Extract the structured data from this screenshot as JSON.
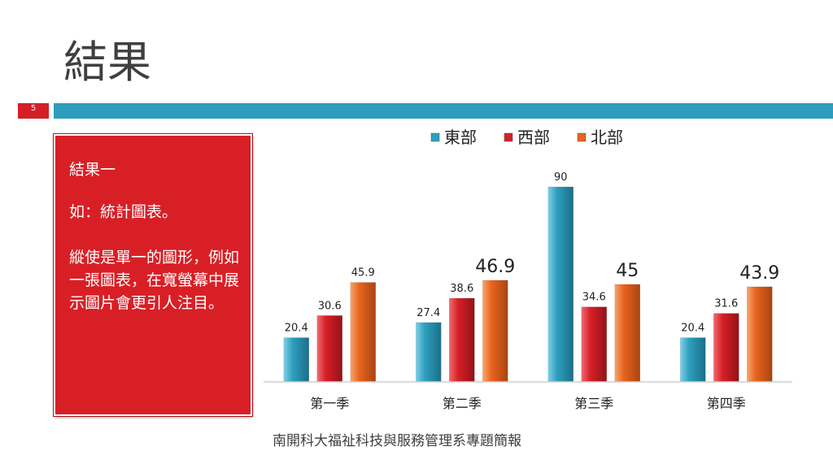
{
  "slide": {
    "title": "結果",
    "page_number": "5",
    "footer": "南開科大福祉科技與服務管理系專題簡報"
  },
  "textbox": {
    "line1": "結果一",
    "line2": "如：統計圖表。",
    "line3": "縱使是單一的圖形，例如一張圖表，在寬螢幕中展示圖片會更引人注目。"
  },
  "colors": {
    "east": "#2e9fbf",
    "west": "#d71f27",
    "north": "#e8641d",
    "accent_red": "#d41f26",
    "accent_blue": "#2e9dbd"
  },
  "chart_data": {
    "type": "bar",
    "categories": [
      "第一季",
      "第二季",
      "第三季",
      "第四季"
    ],
    "series": [
      {
        "name": "東部",
        "values": [
          20.4,
          27.4,
          90,
          20.4
        ],
        "labels": [
          "20.4",
          "27.4",
          "90",
          "20.4"
        ]
      },
      {
        "name": "西部",
        "values": [
          30.6,
          38.6,
          34.6,
          31.6
        ],
        "labels": [
          "30.6",
          "38.6",
          "34.6",
          "31.6"
        ]
      },
      {
        "name": "北部",
        "values": [
          45.9,
          46.9,
          45,
          43.9
        ],
        "labels": [
          "45.9",
          "46.9",
          "45",
          "43.9"
        ]
      }
    ],
    "ylim": [
      0,
      90
    ],
    "legend": "top",
    "grid": false,
    "title": "",
    "xlabel": "",
    "ylabel": ""
  }
}
